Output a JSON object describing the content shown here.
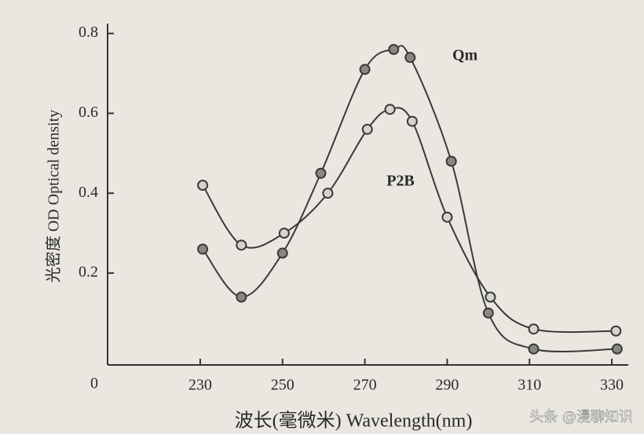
{
  "chart_data": {
    "type": "line",
    "y_label": "光密度 OD Optical density",
    "x_label": "波长(毫微米) Wavelength(nm)",
    "origin_label": "0",
    "watermark": "头条 @漫聊知识",
    "series": [
      {
        "name": "Qm",
        "color": "#3a3a3a",
        "x": [
          230.6,
          240,
          250,
          259.3,
          270,
          277,
          281,
          291,
          300,
          311,
          331.3
        ],
        "values": [
          0.26,
          0.14,
          0.25,
          0.45,
          0.71,
          0.76,
          0.74,
          0.48,
          0.1,
          0.01,
          0.01
        ]
      },
      {
        "name": "P2B",
        "color": "#3a3a3a",
        "x": [
          230.6,
          240,
          250.4,
          261,
          270.6,
          276.1,
          281.5,
          290,
          300.5,
          311,
          331
        ],
        "values": [
          0.42,
          0.27,
          0.3,
          0.4,
          0.56,
          0.61,
          0.58,
          0.34,
          0.14,
          0.06,
          0.055
        ]
      }
    ],
    "xlim": [
      207.5,
      334
    ],
    "ylim": [
      -0.03,
      0.815
    ],
    "xticks": [
      230,
      250,
      270,
      290,
      310,
      330
    ],
    "yticks": [
      {
        "value": 0.2,
        "label": "0.2"
      },
      {
        "value": 0.4,
        "label": "0.4"
      },
      {
        "value": 0.6,
        "label": "0.6"
      },
      {
        "value": 0.8,
        "label": "0.8"
      }
    ]
  }
}
